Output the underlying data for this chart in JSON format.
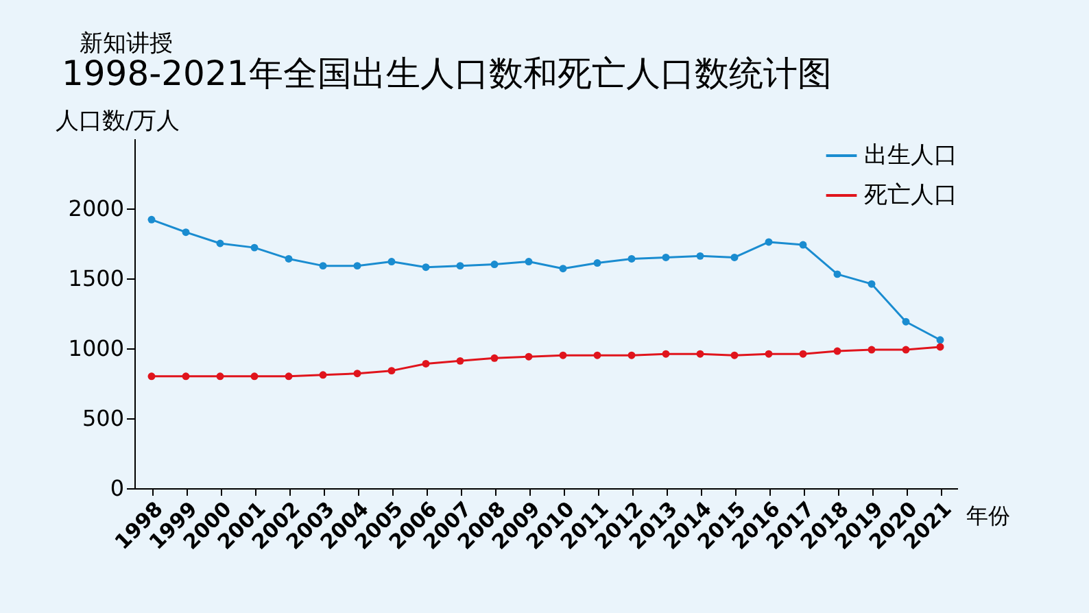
{
  "chart_data": {
    "type": "line",
    "title": "1998-2021年全国出生人口数和死亡人口数统计图",
    "annotations": [
      "新知讲授"
    ],
    "ylabel": "人口数/万人",
    "xlabel": "年份",
    "categories": [
      "1998",
      "1999",
      "2000",
      "2001",
      "2002",
      "2003",
      "2004",
      "2005",
      "2006",
      "2007",
      "2008",
      "2009",
      "2010",
      "2011",
      "2012",
      "2013",
      "2014",
      "2015",
      "2016",
      "2017",
      "2018",
      "2019",
      "2020",
      "2021"
    ],
    "series": [
      {
        "name": "出生人口",
        "color": "#1a8cd0",
        "values": [
          1920,
          1830,
          1750,
          1720,
          1640,
          1590,
          1590,
          1620,
          1580,
          1590,
          1600,
          1620,
          1570,
          1610,
          1640,
          1650,
          1660,
          1650,
          1760,
          1740,
          1530,
          1460,
          1190,
          1060
        ]
      },
      {
        "name": "死亡人口",
        "color": "#e0141c",
        "values": [
          800,
          800,
          800,
          800,
          800,
          810,
          820,
          840,
          890,
          910,
          930,
          940,
          950,
          950,
          950,
          960,
          960,
          950,
          960,
          960,
          980,
          990,
          990,
          1010
        ]
      }
    ],
    "ylim": [
      0,
      2500
    ],
    "yticks": [
      0,
      500,
      1000,
      1500,
      2000
    ],
    "grid": false,
    "legend": "top right",
    "marker": "circle",
    "line_style": "solid"
  }
}
